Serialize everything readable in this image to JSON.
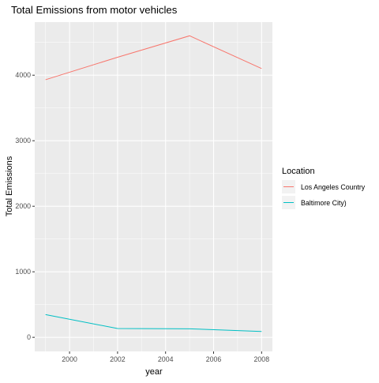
{
  "chart_data": {
    "type": "line",
    "title": "Total Emissions from motor vehicles",
    "xlabel": "year",
    "ylabel": "Total Emissions",
    "x": [
      1999,
      2002,
      2005,
      2008
    ],
    "xlim": [
      1998.55,
      2008.45
    ],
    "ylim": [
      -215,
      4810
    ],
    "x_ticks": [
      2000,
      2002,
      2004,
      2006,
      2008
    ],
    "y_ticks": [
      0,
      1000,
      2000,
      3000,
      4000
    ],
    "grid": true,
    "legend": {
      "title": "Location",
      "position": "right"
    },
    "series": [
      {
        "name": "Los Angeles Country",
        "color": "#F8766D",
        "values": [
          3931,
          4274,
          4601,
          4101
        ]
      },
      {
        "name": "Baltimore City)",
        "color": "#00BFC4",
        "values": [
          347,
          134,
          130,
          89
        ]
      }
    ]
  },
  "colors": {
    "panel_background": "#EBEBEB",
    "grid_major": "#FFFFFF",
    "tick_text": "#4D4D4D"
  }
}
